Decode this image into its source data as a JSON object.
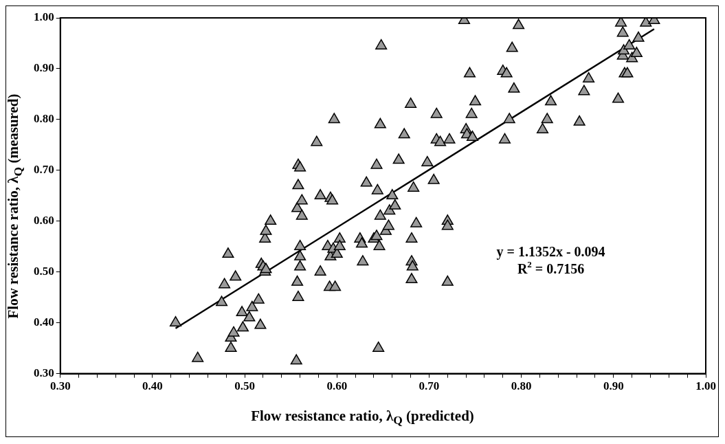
{
  "chart_data": {
    "type": "scatter",
    "xlabel": "Flow resistance ratio, λ$_{Q}$ (predicted)",
    "ylabel": "Flow resistance ratio, λ$_{Q}$ (measured)",
    "series": [
      {
        "type": "scatter",
        "color": "#9a9a9a",
        "marker": "triangle",
        "x": [
          0.425,
          0.449,
          0.475,
          0.478,
          0.482,
          0.485,
          0.485,
          0.488,
          0.49,
          0.497,
          0.498,
          0.505,
          0.508,
          0.515,
          0.517,
          0.518,
          0.52,
          0.522,
          0.523,
          0.522,
          0.523,
          0.528,
          0.556,
          0.557,
          0.558,
          0.557,
          0.558,
          0.56,
          0.56,
          0.56,
          0.56,
          0.558,
          0.562,
          0.562,
          0.578,
          0.582,
          0.582,
          0.59,
          0.592,
          0.593,
          0.595,
          0.593,
          0.596,
          0.597,
          0.598,
          0.6,
          0.603,
          0.603,
          0.625,
          0.627,
          0.628,
          0.632,
          0.64,
          0.643,
          0.643,
          0.644,
          0.645,
          0.646,
          0.647,
          0.647,
          0.648,
          0.653,
          0.656,
          0.657,
          0.66,
          0.663,
          0.667,
          0.673,
          0.68,
          0.681,
          0.681,
          0.682,
          0.681,
          0.683,
          0.686,
          0.698,
          0.705,
          0.708,
          0.708,
          0.712,
          0.72,
          0.72,
          0.72,
          0.722,
          0.738,
          0.74,
          0.741,
          0.744,
          0.746,
          0.747,
          0.75,
          0.78,
          0.782,
          0.784,
          0.787,
          0.79,
          0.792,
          0.797,
          0.823,
          0.828,
          0.832,
          0.863,
          0.868,
          0.873,
          0.905,
          0.908,
          0.91,
          0.91,
          0.911,
          0.912,
          0.915,
          0.917,
          0.92,
          0.925,
          0.927,
          0.935,
          0.944
        ],
        "values": [
          0.4,
          0.33,
          0.44,
          0.475,
          0.535,
          0.37,
          0.35,
          0.38,
          0.49,
          0.42,
          0.39,
          0.41,
          0.43,
          0.445,
          0.395,
          0.515,
          0.51,
          0.5,
          0.505,
          0.565,
          0.58,
          0.6,
          0.325,
          0.48,
          0.45,
          0.625,
          0.71,
          0.705,
          0.51,
          0.53,
          0.55,
          0.67,
          0.64,
          0.61,
          0.755,
          0.65,
          0.5,
          0.55,
          0.47,
          0.645,
          0.64,
          0.53,
          0.545,
          0.8,
          0.47,
          0.535,
          0.565,
          0.55,
          0.565,
          0.555,
          0.52,
          0.675,
          0.565,
          0.57,
          0.71,
          0.66,
          0.35,
          0.55,
          0.61,
          0.79,
          0.945,
          0.58,
          0.59,
          0.62,
          0.65,
          0.63,
          0.72,
          0.77,
          0.83,
          0.485,
          0.52,
          0.51,
          0.565,
          0.665,
          0.595,
          0.715,
          0.68,
          0.81,
          0.76,
          0.755,
          0.6,
          0.59,
          0.48,
          0.76,
          0.995,
          0.78,
          0.77,
          0.89,
          0.81,
          0.765,
          0.835,
          0.895,
          0.76,
          0.89,
          0.8,
          0.94,
          0.86,
          0.985,
          0.78,
          0.8,
          0.835,
          0.795,
          0.855,
          0.88,
          0.84,
          0.99,
          0.97,
          0.925,
          0.935,
          0.89,
          0.89,
          0.945,
          0.92,
          0.93,
          0.96,
          0.99,
          0.995
        ]
      },
      {
        "type": "line",
        "color": "#000000",
        "marker": "none",
        "line_style": "solid",
        "x": [
          0.425,
          0.944
        ],
        "values": [
          0.389,
          0.978
        ]
      }
    ],
    "xlim": [
      0.3,
      1.0
    ],
    "ylim": [
      0.3,
      1.0
    ],
    "xticks": [
      {
        "value": 0.3,
        "label": "0.30"
      },
      {
        "value": 0.32,
        "label": null
      },
      {
        "value": 0.34,
        "label": null
      },
      {
        "value": 0.36,
        "label": null
      },
      {
        "value": 0.38,
        "label": null
      },
      {
        "value": 0.4,
        "label": "0.40"
      },
      {
        "value": 0.42,
        "label": null
      },
      {
        "value": 0.44,
        "label": null
      },
      {
        "value": 0.46,
        "label": null
      },
      {
        "value": 0.48,
        "label": null
      },
      {
        "value": 0.5,
        "label": "0.50"
      },
      {
        "value": 0.52,
        "label": null
      },
      {
        "value": 0.54,
        "label": null
      },
      {
        "value": 0.56,
        "label": null
      },
      {
        "value": 0.58,
        "label": null
      },
      {
        "value": 0.6,
        "label": "0.60"
      },
      {
        "value": 0.62,
        "label": null
      },
      {
        "value": 0.64,
        "label": null
      },
      {
        "value": 0.66,
        "label": null
      },
      {
        "value": 0.68,
        "label": null
      },
      {
        "value": 0.7,
        "label": "0.70"
      },
      {
        "value": 0.72,
        "label": null
      },
      {
        "value": 0.74,
        "label": null
      },
      {
        "value": 0.76,
        "label": null
      },
      {
        "value": 0.78,
        "label": null
      },
      {
        "value": 0.8,
        "label": "0.80"
      },
      {
        "value": 0.82,
        "label": null
      },
      {
        "value": 0.84,
        "label": null
      },
      {
        "value": 0.86,
        "label": null
      },
      {
        "value": 0.88,
        "label": null
      },
      {
        "value": 0.9,
        "label": "0.90"
      },
      {
        "value": 0.92,
        "label": null
      },
      {
        "value": 0.94,
        "label": null
      },
      {
        "value": 0.96,
        "label": null
      },
      {
        "value": 0.98,
        "label": null
      },
      {
        "value": 1.0,
        "label": "1.00"
      }
    ],
    "yticks": [
      {
        "value": 0.3,
        "label": "0.30"
      },
      {
        "value": 0.4,
        "label": "0.40"
      },
      {
        "value": 0.5,
        "label": "0.50"
      },
      {
        "value": 0.6,
        "label": "0.60"
      },
      {
        "value": 0.7,
        "label": "0.70"
      },
      {
        "value": 0.8,
        "label": "0.80"
      },
      {
        "value": 0.9,
        "label": "0.90"
      },
      {
        "value": 1.0,
        "label": "1.00"
      }
    ],
    "annotations": [
      "y = 1.1352x - 0.094",
      "R$^{2}$ = 0.7156"
    ],
    "grid": false,
    "legend": false
  }
}
